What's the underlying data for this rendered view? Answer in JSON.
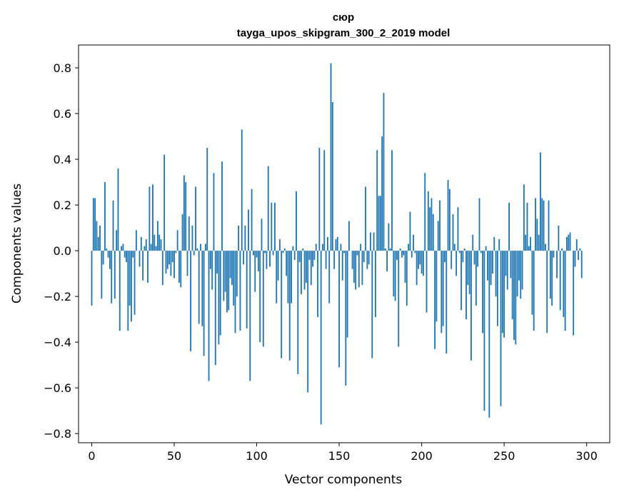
{
  "chart_data": {
    "type": "bar",
    "title": "сюр",
    "subtitle": "tayga_upos_skipgram_300_2_2019 model",
    "xlabel": "Vector components",
    "ylabel": "Components values",
    "xlim": [
      -8,
      314
    ],
    "ylim": [
      -0.84,
      0.9
    ],
    "xticks": [
      0,
      50,
      100,
      150,
      200,
      250,
      300
    ],
    "yticks": [
      -0.8,
      -0.6,
      -0.4,
      -0.2,
      0.0,
      0.2,
      0.4,
      0.6,
      0.8
    ],
    "ytick_labels": [
      "−0.8",
      "−0.6",
      "−0.4",
      "−0.2",
      "0.0",
      "0.2",
      "0.4",
      "0.6",
      "0.8"
    ],
    "bar_color": "#1f77b4",
    "x_start": 0,
    "values": [
      -0.24,
      0.23,
      0.23,
      0.13,
      0.06,
      0.11,
      -0.21,
      -0.06,
      0.3,
      0.01,
      -0.03,
      -0.08,
      -0.23,
      0.22,
      -0.21,
      0.09,
      0.36,
      -0.35,
      0.02,
      0.03,
      -0.03,
      -0.05,
      -0.35,
      -0.24,
      -0.31,
      -0.03,
      -0.28,
      0.09,
      0.0,
      -0.07,
      0.06,
      -0.13,
      0.02,
      0.05,
      -0.14,
      0.28,
      0.03,
      0.29,
      0.07,
      0.02,
      0.13,
      0.07,
      0.05,
      -0.15,
      0.42,
      -0.1,
      -0.08,
      -0.06,
      -0.11,
      -0.05,
      -0.12,
      -0.01,
      0.09,
      -0.14,
      -0.16,
      0.16,
      0.33,
      0.3,
      -0.11,
      0.15,
      -0.44,
      0.11,
      -0.02,
      0.28,
      0.01,
      -0.32,
      0.03,
      -0.33,
      -0.46,
      0.03,
      0.45,
      -0.57,
      -0.08,
      -0.17,
      0.34,
      -0.5,
      -0.1,
      -0.41,
      -0.37,
      0.39,
      -0.22,
      -0.18,
      -0.27,
      -0.26,
      -0.12,
      -0.15,
      -0.24,
      -0.36,
      -0.2,
      0.11,
      -0.35,
      0.53,
      -0.06,
      0.11,
      -0.34,
      0.18,
      -0.57,
      0.27,
      -0.02,
      -0.18,
      -0.03,
      -0.09,
      -0.4,
      0.14,
      -0.42,
      -0.01,
      -0.08,
      0.37,
      -0.07,
      0.21,
      -0.02,
      0.21,
      -0.23,
      -0.13,
      0.05,
      -0.47,
      -0.01,
      0.01,
      -0.11,
      -0.23,
      -0.48,
      -0.23,
      0.02,
      -0.04,
      0.26,
      -0.54,
      -0.05,
      -0.19,
      0.01,
      -0.17,
      -0.14,
      -0.62,
      -0.04,
      -0.15,
      -0.07,
      -0.04,
      0.03,
      -0.29,
      0.45,
      -0.76,
      0.03,
      0.44,
      -0.08,
      0.06,
      -0.23,
      0.82,
      0.65,
      -0.08,
      0.05,
      0.06,
      -0.51,
      0.03,
      -0.13,
      -0.01,
      -0.59,
      -0.38,
      0.13,
      0.0,
      -0.08,
      -0.14,
      -0.17,
      -0.02,
      -0.16,
      0.03,
      -0.15,
      -0.05,
      0.28,
      -0.08,
      -0.06,
      0.08,
      -0.47,
      0.08,
      -0.29,
      0.44,
      0.24,
      0.24,
      0.5,
      0.69,
      0.01,
      -0.09,
      0.12,
      0.01,
      0.44,
      -0.2,
      -0.22,
      -0.04,
      -0.42,
      0.01,
      -0.03,
      -0.02,
      -0.14,
      -0.24,
      0.03,
      0.17,
      -0.03,
      0.07,
      -0.01,
      -0.15,
      -0.08,
      -0.06,
      -0.1,
      -0.11,
      0.34,
      -0.27,
      0.26,
      0.19,
      0.23,
      0.16,
      -0.43,
      -0.31,
      0.13,
      0.22,
      -0.36,
      -0.33,
      -0.05,
      -0.45,
      0.31,
      0.27,
      -0.08,
      0.16,
      0.03,
      -0.11,
      0.19,
      -0.01,
      -0.26,
      -0.05,
      0.01,
      -0.3,
      -0.15,
      -0.19,
      -0.48,
      0.07,
      -0.06,
      -0.24,
      -0.07,
      0.23,
      -0.01,
      -0.36,
      -0.7,
      0.02,
      -0.13,
      -0.73,
      -0.15,
      -0.1,
      0.06,
      -0.2,
      -0.33,
      0.05,
      -0.68,
      -0.36,
      -0.38,
      -0.11,
      -0.17,
      0.21,
      -0.12,
      -0.3,
      -0.39,
      -0.41,
      -0.2,
      -0.13,
      -0.21,
      -0.17,
      0.29,
      0.07,
      0.21,
      0.02,
      0.06,
      -0.28,
      -0.35,
      0.23,
      0.14,
      0.07,
      0.43,
      0.23,
      0.22,
      0.03,
      -0.36,
      0.22,
      -0.21,
      -0.24,
      -0.03,
      0.0,
      -0.12,
      0.11,
      -0.26,
      0.01,
      -0.29,
      -0.35,
      0.06,
      0.07,
      0.08,
      0.0,
      -0.37,
      -0.07,
      0.05,
      -0.04,
      0.01,
      -0.12
    ]
  }
}
